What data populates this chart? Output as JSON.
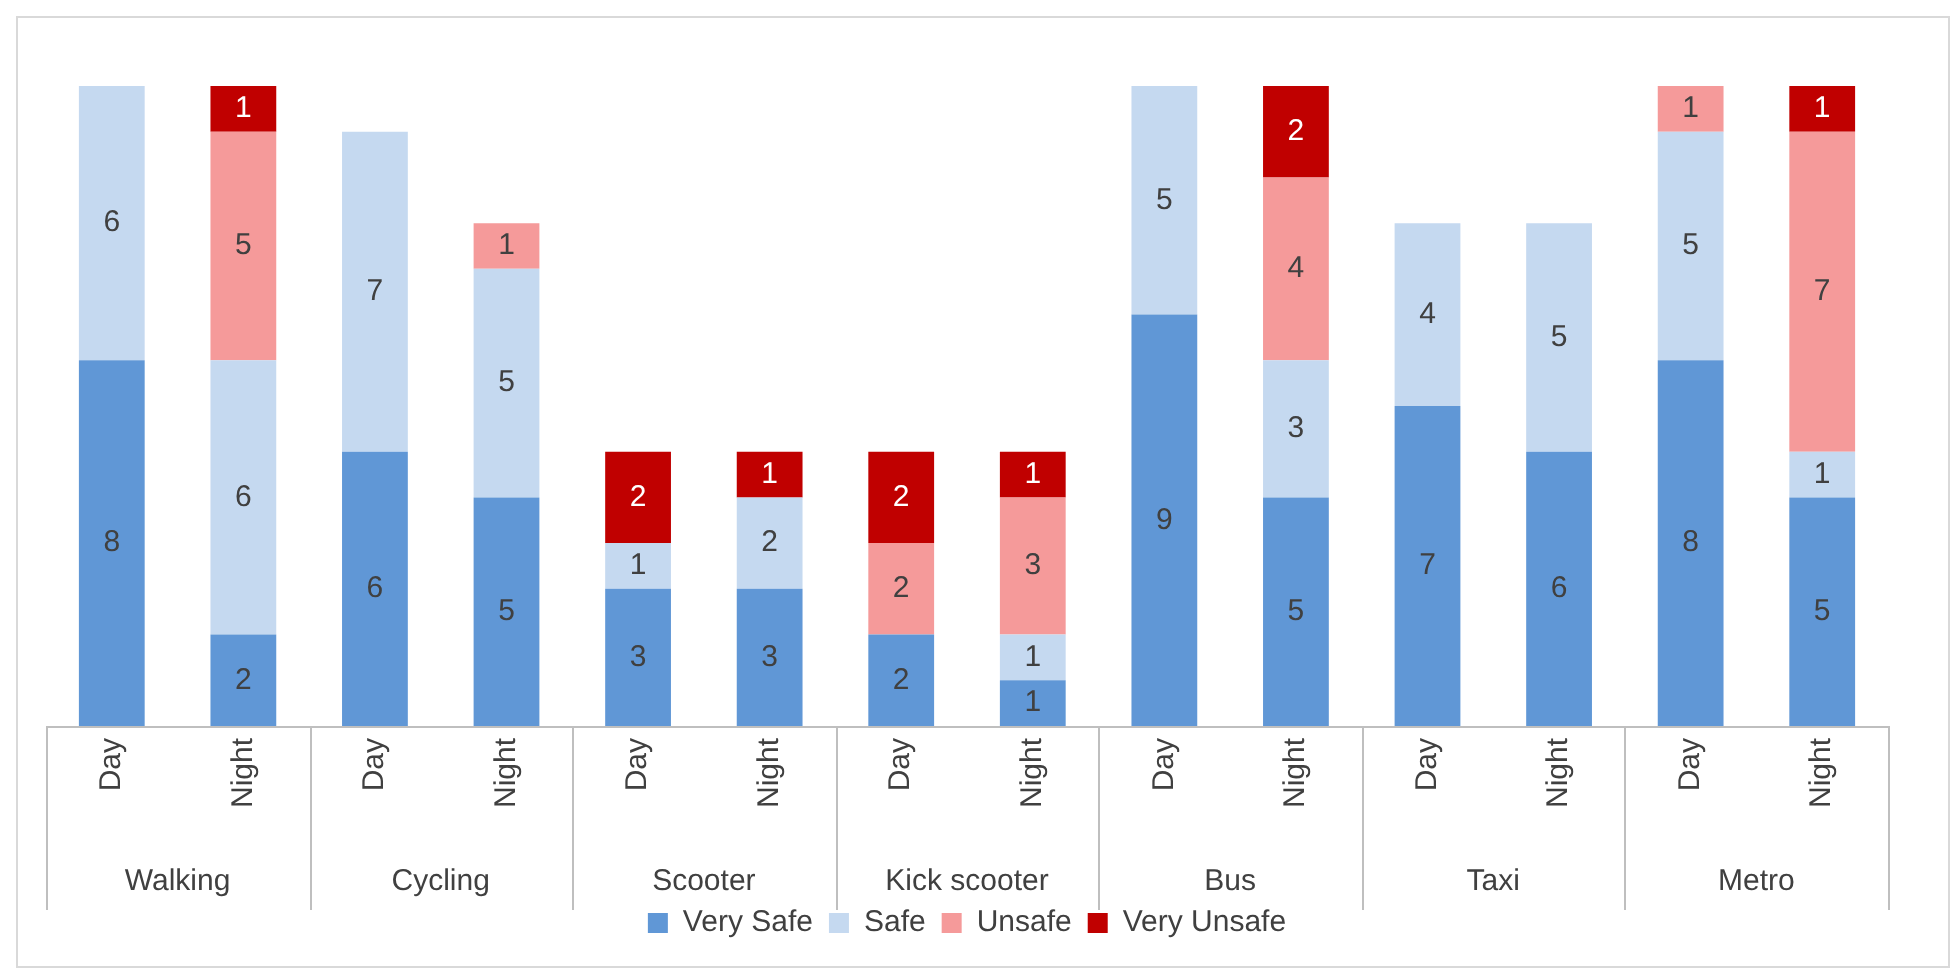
{
  "chart_data": {
    "type": "bar",
    "stacked": true,
    "data_labels": true,
    "legend": "bottom",
    "grid": false,
    "categories": [
      "Day",
      "Night",
      "Day",
      "Night",
      "Day",
      "Night",
      "Day",
      "Night",
      "Day",
      "Night",
      "Day",
      "Night",
      "Day",
      "Night"
    ],
    "annotations": [
      "Walking",
      "Cycling",
      "Scooter",
      "Kick scooter",
      "Bus",
      "Taxi",
      "Metro"
    ],
    "series": [
      {
        "name": "Very Safe",
        "color": "#6097d6",
        "values": [
          8,
          2,
          6,
          5,
          3,
          3,
          2,
          1,
          9,
          5,
          7,
          6,
          8,
          5
        ]
      },
      {
        "name": "Safe",
        "color": "#c5d9f0",
        "values": [
          6,
          6,
          7,
          5,
          1,
          2,
          null,
          1,
          5,
          3,
          4,
          5,
          5,
          1
        ]
      },
      {
        "name": "Unsafe",
        "color": "#f59a9a",
        "values": [
          null,
          5,
          null,
          1,
          null,
          null,
          2,
          3,
          null,
          4,
          null,
          null,
          1,
          7
        ]
      },
      {
        "name": "Very Unsafe",
        "color": "#c00000",
        "values": [
          null,
          1,
          null,
          null,
          2,
          1,
          2,
          1,
          null,
          2,
          null,
          null,
          null,
          1
        ]
      }
    ]
  }
}
